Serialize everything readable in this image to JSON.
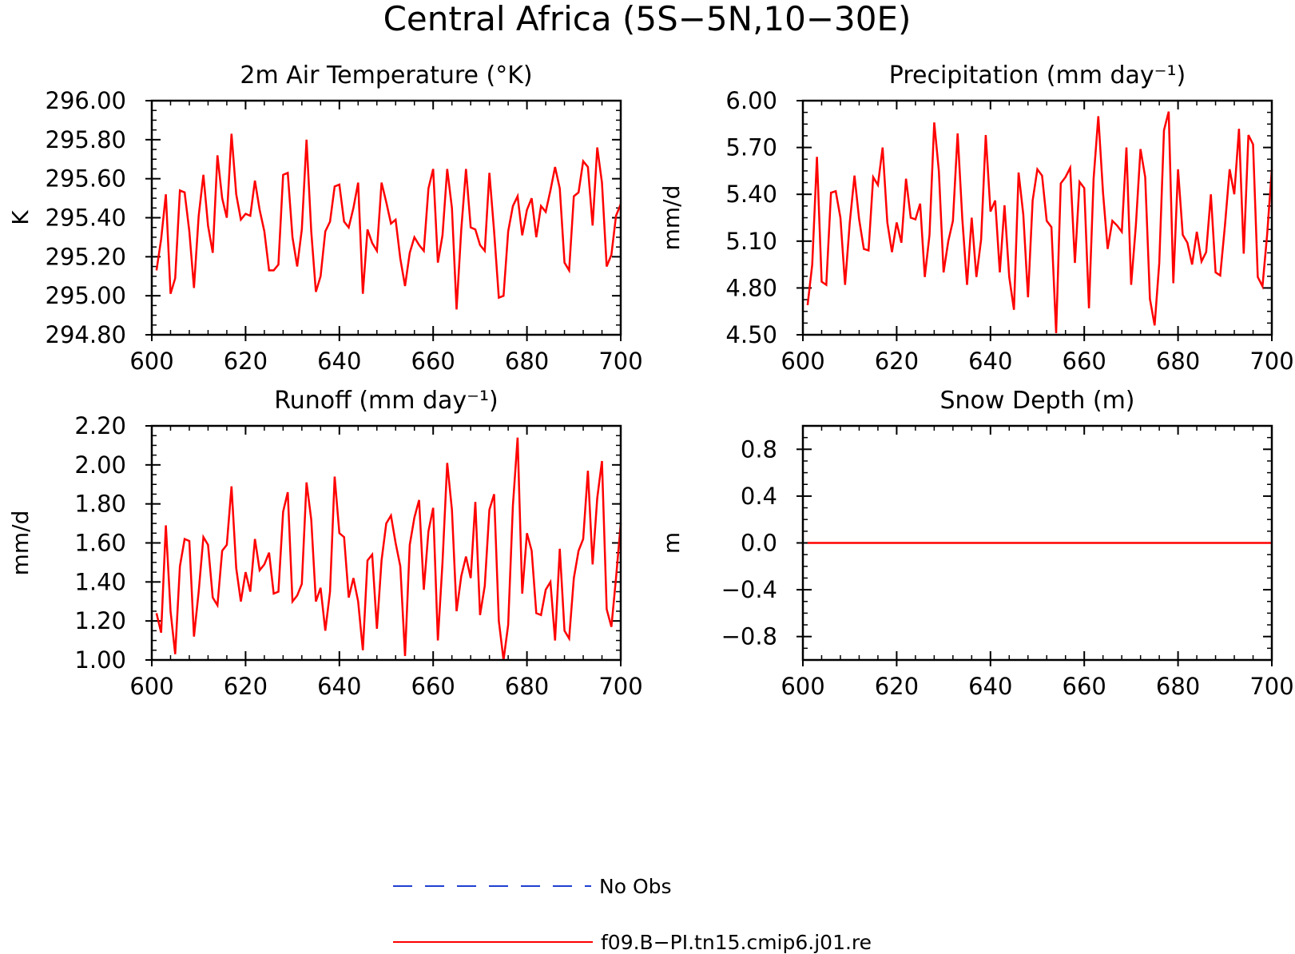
{
  "page": {
    "title": "Central Africa (5S−5N,10−30E)"
  },
  "legend": {
    "items": [
      {
        "label": "No Obs",
        "color": "#1f3fd1",
        "style": "dashed"
      },
      {
        "label": "f09.B−PI.tn15.cmip6.j01.re",
        "color": "#ff0000",
        "style": "solid"
      }
    ]
  },
  "chart_data": [
    {
      "type": "line",
      "title": "2m Air Temperature (°K)",
      "xlabel": "",
      "ylabel": "K",
      "xlim": [
        600,
        700
      ],
      "ylim": [
        294.8,
        296.0
      ],
      "xticks": [
        600,
        620,
        640,
        660,
        680,
        700
      ],
      "yticks": [
        294.8,
        295.0,
        295.2,
        295.4,
        295.6,
        295.8,
        296.0
      ],
      "ytick_labels": [
        "294.80",
        "295.00",
        "295.20",
        "295.40",
        "295.60",
        "295.80",
        "296.00"
      ],
      "x_start": 601,
      "series": [
        {
          "name": "f09.B−PI.tn15.cmip6.j01.re",
          "color": "#ff0000",
          "values": [
            295.13,
            295.29,
            295.52,
            295.01,
            295.09,
            295.54,
            295.53,
            295.33,
            295.04,
            295.41,
            295.62,
            295.36,
            295.22,
            295.72,
            295.5,
            295.4,
            295.83,
            295.52,
            295.39,
            295.42,
            295.41,
            295.59,
            295.44,
            295.33,
            295.13,
            295.13,
            295.16,
            295.62,
            295.63,
            295.3,
            295.15,
            295.34,
            295.8,
            295.33,
            295.02,
            295.1,
            295.33,
            295.38,
            295.56,
            295.57,
            295.38,
            295.35,
            295.45,
            295.58,
            295.01,
            295.34,
            295.27,
            295.23,
            295.58,
            295.48,
            295.37,
            295.39,
            295.19,
            295.05,
            295.22,
            295.3,
            295.26,
            295.23,
            295.55,
            295.65,
            295.17,
            295.31,
            295.65,
            295.45,
            294.93,
            295.34,
            295.65,
            295.35,
            295.34,
            295.26,
            295.23,
            295.63,
            295.33,
            294.99,
            295.0,
            295.33,
            295.46,
            295.51,
            295.31,
            295.44,
            295.5,
            295.3,
            295.46,
            295.43,
            295.54,
            295.66,
            295.55,
            295.17,
            295.13,
            295.51,
            295.53,
            295.69,
            295.66,
            295.36,
            295.76,
            295.58,
            295.15,
            295.21,
            295.41,
            295.47
          ]
        }
      ]
    },
    {
      "type": "line",
      "title": "Precipitation (mm day⁻¹)",
      "xlabel": "",
      "ylabel": "mm/d",
      "xlim": [
        600,
        700
      ],
      "ylim": [
        4.5,
        6.0
      ],
      "xticks": [
        600,
        620,
        640,
        660,
        680,
        700
      ],
      "yticks": [
        4.5,
        4.8,
        5.1,
        5.4,
        5.7,
        6.0
      ],
      "ytick_labels": [
        "4.50",
        "4.80",
        "5.10",
        "5.40",
        "5.70",
        "6.00"
      ],
      "x_start": 601,
      "series": [
        {
          "name": "f09.B−PI.tn15.cmip6.j01.re",
          "color": "#ff0000",
          "values": [
            4.69,
            4.95,
            5.64,
            4.84,
            4.82,
            5.41,
            5.42,
            5.25,
            4.82,
            5.22,
            5.52,
            5.24,
            5.05,
            5.04,
            5.51,
            5.46,
            5.7,
            5.22,
            5.03,
            5.22,
            5.09,
            5.5,
            5.25,
            5.24,
            5.34,
            4.87,
            5.14,
            5.86,
            5.55,
            4.9,
            5.1,
            5.23,
            5.79,
            5.24,
            4.82,
            5.25,
            4.87,
            5.11,
            5.78,
            5.29,
            5.36,
            4.9,
            5.33,
            4.87,
            4.66,
            5.54,
            5.27,
            4.74,
            5.36,
            5.56,
            5.52,
            5.23,
            5.19,
            4.51,
            5.47,
            5.51,
            5.57,
            4.96,
            5.48,
            5.44,
            4.67,
            5.5,
            5.9,
            5.41,
            5.05,
            5.23,
            5.2,
            5.16,
            5.7,
            4.82,
            5.2,
            5.69,
            5.51,
            4.73,
            4.56,
            4.96,
            5.81,
            5.93,
            4.83,
            5.56,
            5.14,
            5.09,
            4.95,
            5.16,
            4.97,
            5.03,
            5.4,
            4.9,
            4.88,
            5.2,
            5.56,
            5.4,
            5.82,
            5.02,
            5.78,
            5.72,
            4.87,
            4.81,
            5.14,
            5.56
          ]
        }
      ]
    },
    {
      "type": "line",
      "title": "Runoff (mm day⁻¹)",
      "xlabel": "",
      "ylabel": "mm/d",
      "xlim": [
        600,
        700
      ],
      "ylim": [
        1.0,
        2.2
      ],
      "xticks": [
        600,
        620,
        640,
        660,
        680,
        700
      ],
      "yticks": [
        1.0,
        1.2,
        1.4,
        1.6,
        1.8,
        2.0,
        2.2
      ],
      "ytick_labels": [
        "1.00",
        "1.20",
        "1.40",
        "1.60",
        "1.80",
        "2.00",
        "2.20"
      ],
      "x_start": 601,
      "series": [
        {
          "name": "f09.B−PI.tn15.cmip6.j01.re",
          "color": "#ff0000",
          "values": [
            1.24,
            1.14,
            1.69,
            1.25,
            1.03,
            1.48,
            1.62,
            1.61,
            1.12,
            1.35,
            1.63,
            1.59,
            1.32,
            1.28,
            1.56,
            1.59,
            1.89,
            1.47,
            1.3,
            1.45,
            1.35,
            1.62,
            1.46,
            1.49,
            1.55,
            1.34,
            1.35,
            1.76,
            1.86,
            1.3,
            1.33,
            1.39,
            1.91,
            1.72,
            1.3,
            1.37,
            1.15,
            1.35,
            1.94,
            1.65,
            1.63,
            1.32,
            1.42,
            1.3,
            1.05,
            1.51,
            1.54,
            1.16,
            1.51,
            1.7,
            1.74,
            1.6,
            1.48,
            1.02,
            1.59,
            1.73,
            1.82,
            1.36,
            1.66,
            1.78,
            1.1,
            1.5,
            2.01,
            1.77,
            1.25,
            1.43,
            1.53,
            1.42,
            1.81,
            1.23,
            1.38,
            1.77,
            1.85,
            1.2,
            1.0,
            1.18,
            1.79,
            2.14,
            1.34,
            1.65,
            1.56,
            1.24,
            1.23,
            1.36,
            1.4,
            1.1,
            1.57,
            1.15,
            1.11,
            1.42,
            1.56,
            1.62,
            1.97,
            1.49,
            1.83,
            2.02,
            1.26,
            1.17,
            1.42,
            1.7
          ]
        }
      ]
    },
    {
      "type": "line",
      "title": "Snow Depth (m)",
      "xlabel": "",
      "ylabel": "m",
      "xlim": [
        600,
        700
      ],
      "ylim": [
        -1.0,
        1.0
      ],
      "xticks": [
        600,
        620,
        640,
        660,
        680,
        700
      ],
      "yticks": [
        -0.8,
        -0.4,
        0.0,
        0.4,
        0.8
      ],
      "ytick_labels": [
        "−0.8",
        "−0.4",
        "0.0",
        "0.4",
        "0.8"
      ],
      "x_start": 601,
      "series": [
        {
          "name": "f09.B−PI.tn15.cmip6.j01.re",
          "color": "#ff0000",
          "values": [
            0,
            0,
            0,
            0,
            0,
            0,
            0,
            0,
            0,
            0,
            0,
            0,
            0,
            0,
            0,
            0,
            0,
            0,
            0,
            0,
            0,
            0,
            0,
            0,
            0,
            0,
            0,
            0,
            0,
            0,
            0,
            0,
            0,
            0,
            0,
            0,
            0,
            0,
            0,
            0,
            0,
            0,
            0,
            0,
            0,
            0,
            0,
            0,
            0,
            0,
            0,
            0,
            0,
            0,
            0,
            0,
            0,
            0,
            0,
            0,
            0,
            0,
            0,
            0,
            0,
            0,
            0,
            0,
            0,
            0,
            0,
            0,
            0,
            0,
            0,
            0,
            0,
            0,
            0,
            0,
            0,
            0,
            0,
            0,
            0,
            0,
            0,
            0,
            0,
            0,
            0,
            0,
            0,
            0,
            0,
            0,
            0,
            0,
            0,
            0
          ]
        }
      ]
    }
  ]
}
